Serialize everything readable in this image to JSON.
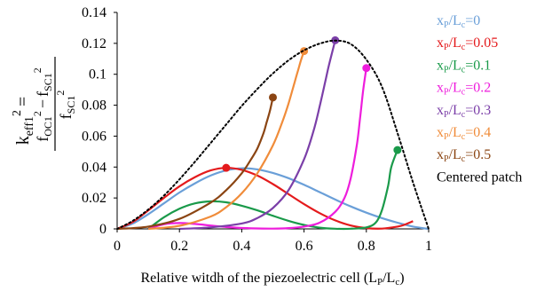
{
  "chart_data": {
    "type": "line",
    "title": "",
    "xlabel": "Relative witdh of the piezoelectric cell (Lp/Lc)",
    "ylabel_parts": {
      "lhs": "k",
      "lhs_sub": "eff1",
      "lhs_sup": "2",
      "equals": "=",
      "num_a": "f",
      "num_a_sub": "OC1",
      "num_a_sup": "2",
      "minus": "−",
      "num_b": "f",
      "num_b_sub": "SC1",
      "num_b_sup": "2",
      "den": "f",
      "den_sub": "SC1",
      "den_sup": "2"
    },
    "xlim": [
      0,
      1
    ],
    "ylim": [
      0,
      0.14
    ],
    "grid": false,
    "xticks": [
      {
        "value": 0,
        "label": "0"
      },
      {
        "value": 0.2,
        "label": "0.2"
      },
      {
        "value": 0.4,
        "label": "0.4"
      },
      {
        "value": 0.6,
        "label": "0.6"
      },
      {
        "value": 0.8,
        "label": "0.8"
      },
      {
        "value": 1,
        "label": "1"
      }
    ],
    "yticks": [
      {
        "value": 0,
        "label": "0"
      },
      {
        "value": 0.02,
        "label": "0.02"
      },
      {
        "value": 0.04,
        "label": "0.04"
      },
      {
        "value": 0.06,
        "label": "0.06"
      },
      {
        "value": 0.08,
        "label": "0.08"
      },
      {
        "value": 0.1,
        "label": "0.1"
      },
      {
        "value": 0.12,
        "label": "0.12"
      },
      {
        "value": 0.14,
        "label": "0.14"
      }
    ],
    "legend": "right",
    "series": [
      {
        "name": "xp/Lc=0",
        "label_html": "x<tspan font-size='10' dy='3'>P</tspan><tspan dy='-3'>/L</tspan><tspan font-size='10' dy='3'>c</tspan><tspan dy='-3'>=0</tspan>",
        "color": "#6a9fd8",
        "dash": "",
        "x": [
          0,
          0.05,
          0.1,
          0.15,
          0.2,
          0.25,
          0.3,
          0.35,
          0.4,
          0.45,
          0.5,
          0.55,
          0.6,
          0.65,
          0.7,
          0.75,
          0.8,
          0.85,
          0.9,
          0.95,
          1.0
        ],
        "y": [
          0,
          0.0035,
          0.0095,
          0.0165,
          0.0235,
          0.0295,
          0.0345,
          0.0378,
          0.0392,
          0.0385,
          0.0362,
          0.0328,
          0.0285,
          0.0238,
          0.019,
          0.0145,
          0.0105,
          0.007,
          0.004,
          0.0015,
          0
        ]
      },
      {
        "name": "xp/Lc=0.05",
        "label_html": "x<tspan font-size='10' dy='3'>P</tspan><tspan dy='-3'>/L</tspan><tspan font-size='10' dy='3'>c</tspan><tspan dy='-3'>=0.05</tspan>",
        "color": "#e41a1c",
        "dash": "",
        "x": [
          0,
          0.05,
          0.1,
          0.15,
          0.2,
          0.25,
          0.3,
          0.35,
          0.4,
          0.45,
          0.5,
          0.55,
          0.6,
          0.65,
          0.7,
          0.75,
          0.8,
          0.85,
          0.9,
          0.92,
          0.95
        ],
        "y": [
          0,
          0.0045,
          0.012,
          0.02,
          0.0275,
          0.0335,
          0.0378,
          0.0395,
          0.0382,
          0.0345,
          0.029,
          0.0225,
          0.016,
          0.0102,
          0.0055,
          0.0022,
          0.0005,
          0.0002,
          0.0015,
          0.0025,
          0.005
        ],
        "marker": {
          "x": 0.35,
          "y": 0.0395
        }
      },
      {
        "name": "xp/Lc=0.1",
        "label_html": "x<tspan font-size='10' dy='3'>P</tspan><tspan dy='-3'>/L</tspan><tspan font-size='10' dy='3'>c</tspan><tspan dy='-3'>=0.1</tspan>",
        "color": "#1a9a4a",
        "dash": "",
        "x": [
          0.1,
          0.15,
          0.2,
          0.25,
          0.3,
          0.35,
          0.4,
          0.45,
          0.5,
          0.55,
          0.6,
          0.65,
          0.7,
          0.75,
          0.8,
          0.83,
          0.85,
          0.87,
          0.88,
          0.9
        ],
        "y": [
          0,
          0.0075,
          0.013,
          0.0165,
          0.0178,
          0.0172,
          0.015,
          0.012,
          0.0085,
          0.0052,
          0.0026,
          0.0008,
          0.0001,
          0.0001,
          0.001,
          0.004,
          0.012,
          0.028,
          0.04,
          0.051
        ],
        "marker": {
          "x": 0.9,
          "y": 0.051
        }
      },
      {
        "name": "xp/Lc=0.2",
        "label_html": "x<tspan font-size='10' dy='3'>P</tspan><tspan dy='-3'>/L</tspan><tspan font-size='10' dy='3'>c</tspan><tspan dy='-3'>=0.2</tspan>",
        "color": "#ee1ddc",
        "dash": "",
        "x": [
          0.1,
          0.15,
          0.2,
          0.25,
          0.3,
          0.35,
          0.4,
          0.45,
          0.5,
          0.55,
          0.6,
          0.65,
          0.7,
          0.73,
          0.75,
          0.77,
          0.78,
          0.79,
          0.8
        ],
        "y": [
          0,
          0.003,
          0.0038,
          0.0032,
          0.0022,
          0.0012,
          0.0006,
          0.0003,
          0.0002,
          0.0005,
          0.0015,
          0.004,
          0.011,
          0.02,
          0.033,
          0.055,
          0.072,
          0.09,
          0.104
        ],
        "marker": {
          "x": 0.8,
          "y": 0.104
        }
      },
      {
        "name": "xp/Lc=0.3",
        "label_html": "x<tspan font-size='10' dy='3'>P</tspan><tspan dy='-3'>/L</tspan><tspan font-size='10' dy='3'>c</tspan><tspan dy='-3'>=0.3</tspan>",
        "color": "#7b3fa8",
        "dash": "",
        "x": [
          0.2,
          0.3,
          0.4,
          0.45,
          0.5,
          0.55,
          0.6,
          0.63,
          0.65,
          0.67,
          0.68,
          0.69,
          0.7
        ],
        "y": [
          0,
          0.001,
          0.0035,
          0.007,
          0.0135,
          0.025,
          0.045,
          0.063,
          0.079,
          0.097,
          0.106,
          0.114,
          0.122
        ],
        "marker": {
          "x": 0.7,
          "y": 0.122
        }
      },
      {
        "name": "xp/Lc=0.4",
        "label_html": "x<tspan font-size='10' dy='3'>P</tspan><tspan dy='-3'>/L</tspan><tspan font-size='10' dy='3'>c</tspan><tspan dy='-3'>=0.4</tspan>",
        "color": "#f08c3a",
        "dash": "",
        "x": [
          0.1,
          0.2,
          0.3,
          0.35,
          0.4,
          0.45,
          0.5,
          0.53,
          0.55,
          0.57,
          0.58,
          0.59,
          0.6
        ],
        "y": [
          0,
          0.002,
          0.008,
          0.014,
          0.023,
          0.036,
          0.054,
          0.069,
          0.081,
          0.095,
          0.102,
          0.109,
          0.115
        ],
        "marker": {
          "x": 0.6,
          "y": 0.115
        }
      },
      {
        "name": "xp/Lc=0.5",
        "label_html": "x<tspan font-size='10' dy='3'>P</tspan><tspan dy='-3'>/L</tspan><tspan font-size='10' dy='3'>c</tspan><tspan dy='-3'>=0.5</tspan>",
        "color": "#8b4513",
        "dash": "",
        "x": [
          0,
          0.1,
          0.2,
          0.3,
          0.35,
          0.4,
          0.43,
          0.45,
          0.47,
          0.48,
          0.49,
          0.5
        ],
        "y": [
          0,
          0.0015,
          0.0065,
          0.017,
          0.025,
          0.036,
          0.045,
          0.052,
          0.062,
          0.069,
          0.076,
          0.085
        ],
        "marker": {
          "x": 0.5,
          "y": 0.085
        }
      },
      {
        "name": "Centered patch",
        "label_html": "Centered patch",
        "color": "#000000",
        "dash": "2,3",
        "x": [
          0,
          0.05,
          0.1,
          0.15,
          0.2,
          0.25,
          0.3,
          0.35,
          0.4,
          0.45,
          0.5,
          0.55,
          0.6,
          0.65,
          0.7,
          0.75,
          0.8,
          0.85,
          0.9,
          0.95,
          1.0
        ],
        "y": [
          0,
          0.0052,
          0.0125,
          0.0215,
          0.032,
          0.0435,
          0.0555,
          0.0675,
          0.0795,
          0.0905,
          0.1005,
          0.109,
          0.1155,
          0.1198,
          0.1218,
          0.1195,
          0.1095,
          0.092,
          0.062,
          0.03,
          0
        ]
      }
    ]
  }
}
